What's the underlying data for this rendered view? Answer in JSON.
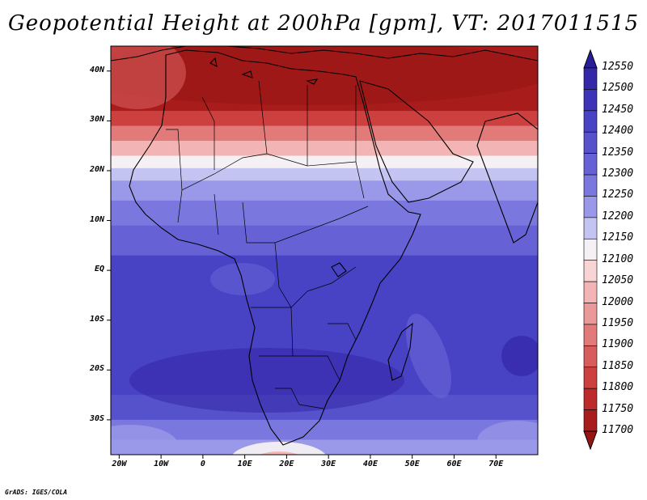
{
  "title": "Geopotential Height at 200hPa [gpm], VT: 2017011515",
  "footer": "GrADS: IGES/COLA",
  "lat_labels": [
    "40N",
    "30N",
    "20N",
    "10N",
    "EQ",
    "10S",
    "20S",
    "30S"
  ],
  "lon_labels": [
    "20W",
    "10W",
    "0",
    "10E",
    "20E",
    "30E",
    "40E",
    "50E",
    "60E",
    "70E"
  ],
  "colorbar": {
    "levels": [
      "12550",
      "12500",
      "12450",
      "12400",
      "12350",
      "12300",
      "12250",
      "12200",
      "12150",
      "12100",
      "12050",
      "12000",
      "11950",
      "11900",
      "11850",
      "11800",
      "11750",
      "11700"
    ],
    "colors": [
      "#2a1d9a",
      "#3427a8",
      "#3d33b8",
      "#4842c4",
      "#5652cc",
      "#6662d6",
      "#7a78de",
      "#9a98e8",
      "#c4c4f2",
      "#f4f0f4",
      "#f8d4d4",
      "#f2b4b4",
      "#ea9898",
      "#e27a7a",
      "#d85c5c",
      "#cc4040",
      "#bc2a2a",
      "#a81c1c",
      "#961414"
    ]
  },
  "map": {
    "lon_range": [
      -22,
      80
    ],
    "lat_range": [
      -37,
      45
    ],
    "field_bands": [
      {
        "lat_top": 45,
        "lat_bottom": 32,
        "color": "#a81c1c"
      },
      {
        "lat_top": 32,
        "lat_bottom": 29,
        "color": "#cc4040"
      },
      {
        "lat_top": 29,
        "lat_bottom": 26,
        "color": "#e27a7a"
      },
      {
        "lat_top": 26,
        "lat_bottom": 23,
        "color": "#f2b4b4"
      },
      {
        "lat_top": 23,
        "lat_bottom": 20.5,
        "color": "#f4f0f4"
      },
      {
        "lat_top": 20.5,
        "lat_bottom": 18,
        "color": "#c4c4f2"
      },
      {
        "lat_top": 18,
        "lat_bottom": 14,
        "color": "#9a98e8"
      },
      {
        "lat_top": 14,
        "lat_bottom": 9,
        "color": "#7a78de"
      },
      {
        "lat_top": 9,
        "lat_bottom": 3,
        "color": "#6662d6"
      },
      {
        "lat_top": 3,
        "lat_bottom": -25,
        "color": "#4842c4"
      },
      {
        "lat_top": -25,
        "lat_bottom": -30,
        "color": "#5652cc"
      },
      {
        "lat_top": -30,
        "lat_bottom": -34,
        "color": "#7a78de"
      },
      {
        "lat_top": -34,
        "lat_bottom": -37,
        "color": "#9a98e8"
      }
    ]
  }
}
